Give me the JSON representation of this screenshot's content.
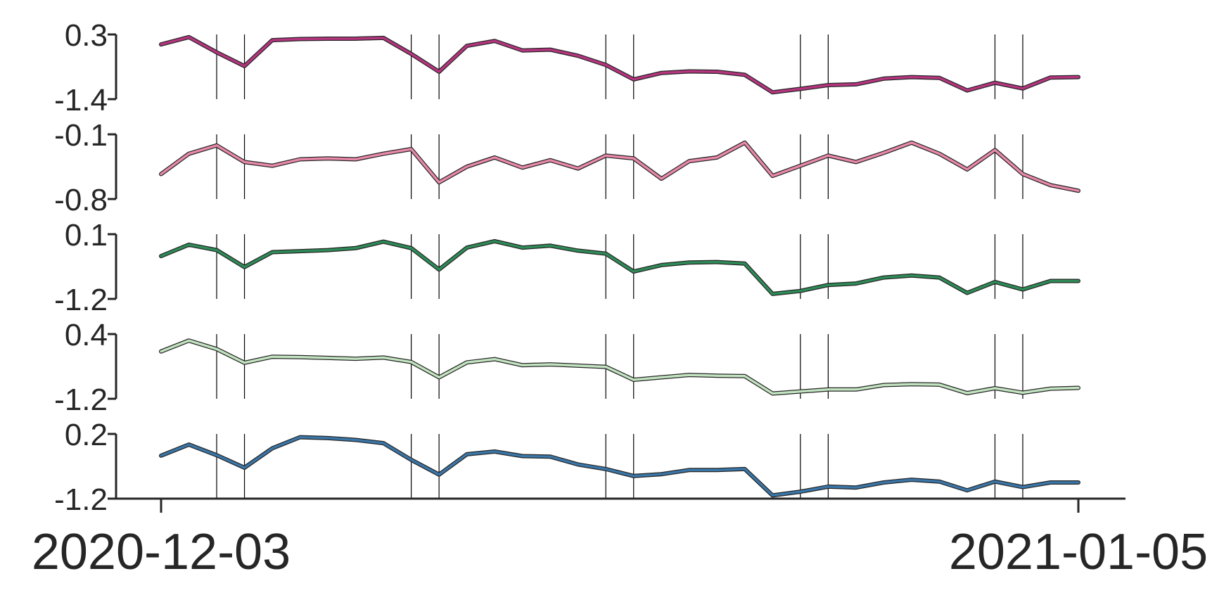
{
  "chart_data": {
    "type": "line",
    "x_start": "2020-12-03",
    "x_end": "2021-01-05",
    "x_tick_labels": [
      "2020-12-03",
      "2021-01-05"
    ],
    "vertical_markers": [
      "2020-12-05",
      "2020-12-06",
      "2020-12-12",
      "2020-12-13",
      "2020-12-19",
      "2020-12-20",
      "2020-12-26",
      "2020-12-27",
      "2021-01-02",
      "2021-01-03"
    ],
    "grid": false,
    "series_colors": [
      "#b5357f",
      "#e889a8",
      "#2e8b57",
      "#c2e3c0",
      "#3a76a8"
    ],
    "panels": [
      {
        "ylim": [
          -1.4,
          0.3
        ],
        "ytick_labels": [
          "0.3",
          "-1.4"
        ],
        "values": [
          0.04,
          0.23,
          -0.17,
          -0.53,
          0.15,
          0.18,
          0.19,
          0.19,
          0.21,
          -0.21,
          -0.68,
          0.0,
          0.13,
          -0.12,
          -0.1,
          -0.26,
          -0.5,
          -0.88,
          -0.71,
          -0.67,
          -0.68,
          -0.76,
          -1.22,
          -1.13,
          -1.03,
          -1.01,
          -0.86,
          -0.82,
          -0.84,
          -1.17,
          -0.97,
          -1.12,
          -0.83,
          -0.82
        ]
      },
      {
        "ylim": [
          -0.8,
          -0.1
        ],
        "ytick_labels": [
          "-0.1",
          "-0.8"
        ],
        "values": [
          -0.53,
          -0.31,
          -0.22,
          -0.4,
          -0.44,
          -0.37,
          -0.36,
          -0.37,
          -0.31,
          -0.26,
          -0.62,
          -0.45,
          -0.35,
          -0.46,
          -0.38,
          -0.47,
          -0.33,
          -0.36,
          -0.58,
          -0.39,
          -0.35,
          -0.19,
          -0.55,
          -0.44,
          -0.33,
          -0.4,
          -0.3,
          -0.19,
          -0.31,
          -0.48,
          -0.27,
          -0.53,
          -0.65,
          -0.71
        ]
      },
      {
        "ylim": [
          -1.2,
          0.1
        ],
        "ytick_labels": [
          "0.1",
          "-1.2"
        ],
        "values": [
          -0.34,
          -0.11,
          -0.22,
          -0.56,
          -0.26,
          -0.24,
          -0.22,
          -0.18,
          -0.05,
          -0.18,
          -0.61,
          -0.17,
          -0.04,
          -0.17,
          -0.13,
          -0.23,
          -0.29,
          -0.65,
          -0.52,
          -0.47,
          -0.46,
          -0.49,
          -1.1,
          -1.04,
          -0.92,
          -0.89,
          -0.77,
          -0.73,
          -0.77,
          -1.08,
          -0.86,
          -1.01,
          -0.84,
          -0.84
        ]
      },
      {
        "ylim": [
          -1.2,
          0.4
        ],
        "ytick_labels": [
          "0.4",
          "-1.2"
        ],
        "values": [
          -0.03,
          0.24,
          0.03,
          -0.31,
          -0.16,
          -0.17,
          -0.19,
          -0.21,
          -0.18,
          -0.29,
          -0.67,
          -0.3,
          -0.22,
          -0.37,
          -0.35,
          -0.38,
          -0.41,
          -0.73,
          -0.67,
          -0.61,
          -0.63,
          -0.64,
          -1.07,
          -1.02,
          -0.97,
          -0.97,
          -0.86,
          -0.84,
          -0.85,
          -1.06,
          -0.94,
          -1.05,
          -0.95,
          -0.93
        ]
      },
      {
        "ylim": [
          -1.2,
          0.2
        ],
        "ytick_labels": [
          "0.2",
          "-1.2"
        ],
        "values": [
          -0.27,
          -0.03,
          -0.26,
          -0.53,
          -0.11,
          0.13,
          0.11,
          0.07,
          0.0,
          -0.36,
          -0.68,
          -0.24,
          -0.18,
          -0.28,
          -0.29,
          -0.46,
          -0.56,
          -0.71,
          -0.67,
          -0.58,
          -0.58,
          -0.56,
          -1.13,
          -1.05,
          -0.94,
          -0.96,
          -0.85,
          -0.79,
          -0.83,
          -1.02,
          -0.83,
          -0.95,
          -0.85,
          -0.85
        ]
      }
    ]
  }
}
